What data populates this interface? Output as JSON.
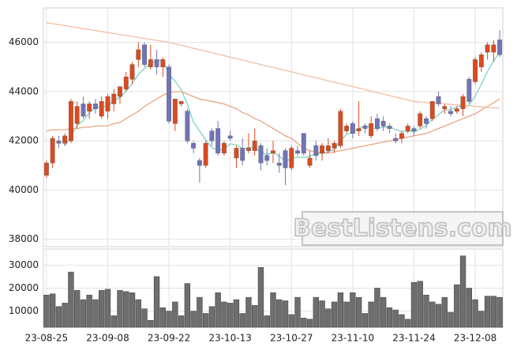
{
  "chart_data": {
    "type": "candlestick",
    "watermark": "BestListens.com",
    "categories": [
      "23-08-25",
      null,
      null,
      null,
      null,
      null,
      null,
      null,
      null,
      null,
      "23-09-08",
      null,
      null,
      null,
      null,
      null,
      null,
      null,
      null,
      null,
      "23-09-22",
      null,
      null,
      null,
      null,
      null,
      null,
      null,
      null,
      null,
      "23-10-13",
      null,
      null,
      null,
      null,
      null,
      null,
      null,
      null,
      null,
      "23-10-27",
      null,
      null,
      null,
      null,
      null,
      null,
      null,
      null,
      null,
      "23-11-10",
      null,
      null,
      null,
      null,
      null,
      null,
      null,
      null,
      null,
      "23-11-24",
      null,
      null,
      null,
      null,
      null,
      null,
      null,
      null,
      null,
      "23-12-08",
      null,
      null,
      null,
      null
    ],
    "open": [
      40600,
      41100,
      42000,
      41900,
      42000,
      42700,
      43500,
      43200,
      43500,
      43000,
      43200,
      43500,
      43800,
      44100,
      44500,
      45300,
      45900,
      45000,
      45300,
      45000,
      45000,
      42700,
      43500,
      43200,
      41900,
      41200,
      41000,
      42400,
      42500,
      41500,
      42200,
      41300,
      41700,
      41600,
      41600,
      41800,
      41400,
      41500,
      41100,
      41600,
      40900,
      41600,
      42300,
      41000,
      41800,
      41500,
      41600,
      41700,
      41800,
      42400,
      42700,
      42400,
      42600,
      42200,
      42900,
      42800,
      42600,
      42100,
      42100,
      42400,
      42500,
      42600,
      42900,
      42900,
      43800,
      43300,
      43200,
      43200,
      43300,
      44500,
      44400,
      45000,
      45600,
      45600,
      46100
    ],
    "high": [
      41200,
      42200,
      42200,
      42300,
      43700,
      43600,
      43800,
      43600,
      43700,
      43800,
      43900,
      44100,
      44200,
      44800,
      45200,
      46000,
      46000,
      45900,
      45700,
      45400,
      45100,
      43700,
      43600,
      43300,
      42000,
      41300,
      42000,
      42500,
      42800,
      42000,
      42400,
      41800,
      42100,
      42300,
      42500,
      41900,
      41700,
      42000,
      41500,
      41700,
      41800,
      41800,
      42300,
      41600,
      42000,
      41900,
      42100,
      42000,
      43300,
      42700,
      42800,
      43600,
      42700,
      43000,
      43100,
      43000,
      42700,
      42300,
      42400,
      42700,
      42600,
      43200,
      43000,
      43600,
      44000,
      43500,
      43400,
      43400,
      43900,
      44600,
      45400,
      45600,
      46000,
      46100,
      46500
    ],
    "low": [
      40500,
      40900,
      41700,
      41800,
      41900,
      42500,
      42900,
      42900,
      43100,
      42900,
      42900,
      43200,
      43500,
      44000,
      44300,
      45000,
      45000,
      44900,
      44700,
      44600,
      42700,
      42400,
      43400,
      41900,
      41500,
      40300,
      40900,
      41800,
      41400,
      41400,
      42000,
      40900,
      41000,
      41500,
      41400,
      40800,
      41000,
      41100,
      40700,
      40200,
      40800,
      41400,
      41400,
      40900,
      41200,
      41200,
      41500,
      41500,
      41700,
      42300,
      42100,
      42200,
      42300,
      42100,
      42400,
      42400,
      42300,
      41900,
      41900,
      42300,
      42200,
      42500,
      42500,
      42800,
      43400,
      43100,
      43000,
      43100,
      43000,
      43500,
      44300,
      44800,
      45300,
      45200,
      45400
    ],
    "close": [
      41100,
      42100,
      41900,
      42200,
      43600,
      43400,
      43000,
      43500,
      43300,
      43600,
      43800,
      43900,
      44200,
      44600,
      45100,
      45700,
      45100,
      45300,
      45000,
      45300,
      42800,
      43700,
      43600,
      42000,
      41700,
      41000,
      41900,
      42000,
      41500,
      41900,
      42100,
      41700,
      41200,
      41700,
      42000,
      41100,
      41200,
      41600,
      41000,
      40900,
      41700,
      41500,
      41500,
      41300,
      41400,
      41800,
      41800,
      41900,
      43200,
      42600,
      42300,
      42500,
      42500,
      42700,
      42500,
      42600,
      42500,
      42000,
      42300,
      42600,
      42400,
      43100,
      42700,
      43600,
      43500,
      43400,
      43100,
      43300,
      43800,
      43600,
      45300,
      45500,
      45900,
      45900,
      45500
    ],
    "up_color": "#dc4a1e",
    "down_color": "#7174b8",
    "lines": [
      {
        "color": "#7fd3c0",
        "values": [
          null,
          null,
          null,
          41800,
          42180,
          42640,
          42820,
          43140,
          43360,
          43360,
          43440,
          43620,
          43760,
          44020,
          44320,
          44700,
          44940,
          45160,
          45240,
          45280,
          44700,
          44420,
          44080,
          43480,
          42760,
          42400,
          42040,
          41720,
          41620,
          41660,
          41880,
          41840,
          41680,
          41720,
          41740,
          41540,
          41440,
          41520,
          41380,
          41160,
          41280,
          41340,
          41320,
          41380,
          41480,
          41500,
          41560,
          41640,
          42020,
          42260,
          42360,
          42500,
          42620,
          42520,
          42500,
          42560,
          42560,
          42460,
          42380,
          42400,
          42360,
          42480,
          42620,
          42880,
          43060,
          43260,
          43260,
          43380,
          43420,
          43440,
          43820,
          44300,
          44820,
          45240,
          45620
        ]
      },
      {
        "color": "#e9a485",
        "values": [
          42400,
          42450,
          42450,
          42450,
          42500,
          42500,
          42550,
          42550,
          42600,
          42600,
          42600,
          42700,
          42750,
          42900,
          43050,
          43200,
          43400,
          43550,
          43700,
          43850,
          43950,
          44000,
          44000,
          43900,
          43800,
          43700,
          43650,
          43600,
          43550,
          43500,
          43400,
          43300,
          43150,
          43050,
          42900,
          42800,
          42650,
          42500,
          42350,
          42200,
          42100,
          41900,
          41700,
          41600,
          41550,
          41500,
          41500,
          41550,
          41600,
          41650,
          41700,
          41750,
          41800,
          41850,
          41900,
          41950,
          42000,
          42050,
          42100,
          42150,
          42200,
          42250,
          42300,
          42400,
          42500,
          42600,
          42700,
          42800,
          42900,
          43000,
          43100,
          43250,
          43400,
          43550,
          43700
        ]
      },
      {
        "color": "#f0bfa5",
        "values": [
          46800,
          46760,
          46720,
          46680,
          46640,
          46600,
          46560,
          46520,
          46480,
          46440,
          46400,
          46360,
          46320,
          46280,
          46240,
          46200,
          46160,
          46120,
          46080,
          46040,
          46000,
          45940,
          45880,
          45820,
          45760,
          45700,
          45640,
          45580,
          45520,
          45460,
          45400,
          45340,
          45280,
          45220,
          45160,
          45100,
          45040,
          44980,
          44920,
          44860,
          44800,
          44740,
          44680,
          44620,
          44560,
          44500,
          44440,
          44380,
          44320,
          44260,
          44200,
          44140,
          44080,
          44020,
          43960,
          43900,
          43840,
          43780,
          43720,
          43660,
          43600,
          43580,
          43560,
          43540,
          43520,
          43500,
          43480,
          43460,
          43440,
          43420,
          43400,
          43380,
          43360,
          43340,
          43320
        ]
      }
    ],
    "ylim": [
      37700,
      47400
    ],
    "yticks": [
      38000,
      40000,
      42000,
      44000,
      46000
    ],
    "grid": true,
    "volume": {
      "color": "#6e6e6e",
      "values": [
        17000,
        17500,
        12000,
        13500,
        27000,
        19000,
        15000,
        17000,
        15000,
        19000,
        19500,
        8000,
        19000,
        18500,
        18000,
        15000,
        11000,
        6000,
        25000,
        11500,
        10000,
        14000,
        8000,
        22000,
        10000,
        16000,
        9000,
        12000,
        18000,
        14000,
        13500,
        15000,
        9000,
        16000,
        12500,
        29000,
        8000,
        18000,
        15000,
        14500,
        8500,
        16000,
        7000,
        6500,
        16000,
        14500,
        11000,
        14000,
        18000,
        14000,
        18000,
        16000,
        9000,
        14000,
        20000,
        16000,
        11500,
        10500,
        8500,
        6500,
        22500,
        23000,
        17000,
        14000,
        13000,
        16000,
        9500,
        21500,
        34000,
        20000,
        15000,
        10000,
        16500,
        16500,
        16000
      ],
      "ylim": [
        3000,
        37000
      ],
      "yticks": [
        10000,
        20000,
        30000
      ]
    }
  }
}
